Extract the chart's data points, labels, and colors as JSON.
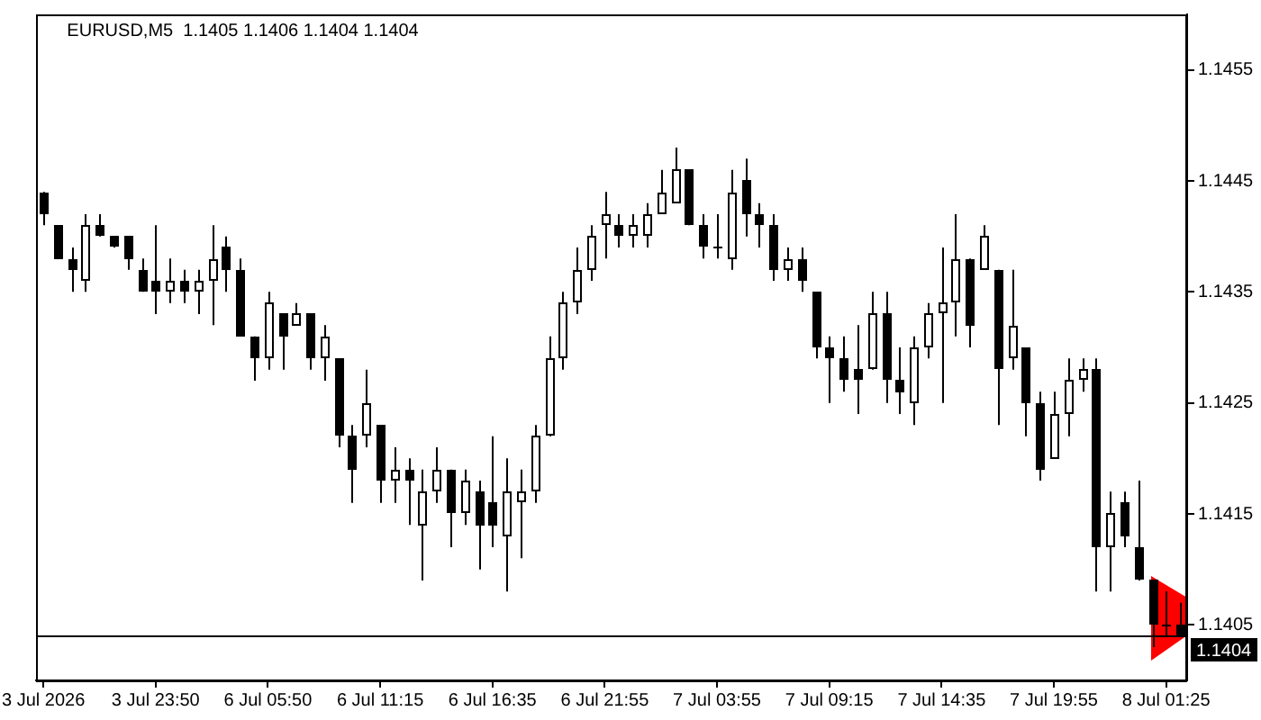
{
  "chart_data": {
    "type": "candlestick",
    "title": "EURUSD,M5  1.1405 1.1406 1.1404 1.1404",
    "categories": [
      "3 Jul 2026",
      null,
      null,
      null,
      null,
      null,
      null,
      null,
      "3 Jul 23:50",
      null,
      null,
      null,
      null,
      null,
      null,
      null,
      "6 Jul 05:50",
      null,
      null,
      null,
      null,
      null,
      null,
      null,
      "6 Jul 11:15",
      null,
      null,
      null,
      null,
      null,
      null,
      null,
      "6 Jul 16:35",
      null,
      null,
      null,
      null,
      null,
      null,
      null,
      "6 Jul 21:55",
      null,
      null,
      null,
      null,
      null,
      null,
      null,
      "7 Jul 03:55",
      null,
      null,
      null,
      null,
      null,
      null,
      null,
      "7 Jul 09:15",
      null,
      null,
      null,
      null,
      null,
      null,
      null,
      "7 Jul 14:35",
      null,
      null,
      null,
      null,
      null,
      null,
      null,
      "7 Jul 19:55",
      null,
      null,
      null,
      null,
      null,
      null,
      null,
      "8 Jul 01:25",
      null
    ],
    "ohlc": [
      [
        1.1444,
        1.1444,
        1.1441,
        1.1442
      ],
      [
        1.1441,
        1.1441,
        1.1438,
        1.1438
      ],
      [
        1.1438,
        1.1439,
        1.1435,
        1.1437
      ],
      [
        1.1436,
        1.1442,
        1.1435,
        1.1441
      ],
      [
        1.1441,
        1.1442,
        1.144,
        1.144
      ],
      [
        1.144,
        1.144,
        1.1439,
        1.1439
      ],
      [
        1.144,
        1.144,
        1.1437,
        1.1438
      ],
      [
        1.1437,
        1.1438,
        1.1435,
        1.1435
      ],
      [
        1.1436,
        1.1441,
        1.1433,
        1.1435
      ],
      [
        1.1435,
        1.1438,
        1.1434,
        1.1436
      ],
      [
        1.1436,
        1.1437,
        1.1434,
        1.1435
      ],
      [
        1.1435,
        1.1437,
        1.1433,
        1.1436
      ],
      [
        1.1436,
        1.1441,
        1.1432,
        1.1438
      ],
      [
        1.1439,
        1.144,
        1.1435,
        1.1437
      ],
      [
        1.1437,
        1.1438,
        1.1431,
        1.1431
      ],
      [
        1.1431,
        1.1431,
        1.1427,
        1.1429
      ],
      [
        1.1429,
        1.1435,
        1.1428,
        1.1434
      ],
      [
        1.1433,
        1.1433,
        1.1428,
        1.1431
      ],
      [
        1.1432,
        1.1434,
        1.1432,
        1.1433
      ],
      [
        1.1433,
        1.1433,
        1.1428,
        1.1429
      ],
      [
        1.1429,
        1.1432,
        1.1427,
        1.1431
      ],
      [
        1.1429,
        1.1429,
        1.1421,
        1.1422
      ],
      [
        1.1422,
        1.1423,
        1.1416,
        1.1419
      ],
      [
        1.1422,
        1.1428,
        1.1421,
        1.1425
      ],
      [
        1.1423,
        1.1423,
        1.1416,
        1.1418
      ],
      [
        1.1418,
        1.1421,
        1.1416,
        1.1419
      ],
      [
        1.1419,
        1.142,
        1.1414,
        1.1418
      ],
      [
        1.1414,
        1.1419,
        1.1409,
        1.1417
      ],
      [
        1.1417,
        1.1421,
        1.1416,
        1.1419
      ],
      [
        1.1419,
        1.1419,
        1.1412,
        1.1415
      ],
      [
        1.1415,
        1.1419,
        1.1414,
        1.1418
      ],
      [
        1.1417,
        1.1418,
        1.141,
        1.1414
      ],
      [
        1.1416,
        1.1422,
        1.1412,
        1.1414
      ],
      [
        1.1413,
        1.142,
        1.1408,
        1.1417
      ],
      [
        1.1416,
        1.1419,
        1.1411,
        1.1417
      ],
      [
        1.1417,
        1.1423,
        1.1416,
        1.1422
      ],
      [
        1.1422,
        1.1431,
        1.1422,
        1.1429
      ],
      [
        1.1429,
        1.1435,
        1.1428,
        1.1434
      ],
      [
        1.1434,
        1.1439,
        1.1433,
        1.1437
      ],
      [
        1.1437,
        1.1441,
        1.1436,
        1.144
      ],
      [
        1.1441,
        1.1444,
        1.1438,
        1.1442
      ],
      [
        1.1441,
        1.1442,
        1.1439,
        1.144
      ],
      [
        1.144,
        1.1442,
        1.1439,
        1.1441
      ],
      [
        1.144,
        1.1443,
        1.1439,
        1.1442
      ],
      [
        1.1442,
        1.1446,
        1.1442,
        1.1444
      ],
      [
        1.1443,
        1.1448,
        1.1443,
        1.1446
      ],
      [
        1.1446,
        1.1446,
        1.1441,
        1.1441
      ],
      [
        1.1441,
        1.1442,
        1.1438,
        1.1439
      ],
      [
        1.1439,
        1.1442,
        1.1438,
        1.1439
      ],
      [
        1.1438,
        1.1446,
        1.1437,
        1.1444
      ],
      [
        1.1445,
        1.1447,
        1.144,
        1.1442
      ],
      [
        1.1442,
        1.1443,
        1.1439,
        1.1441
      ],
      [
        1.1441,
        1.1442,
        1.1436,
        1.1437
      ],
      [
        1.1437,
        1.1439,
        1.1436,
        1.1438
      ],
      [
        1.1438,
        1.1439,
        1.1435,
        1.1436
      ],
      [
        1.1435,
        1.1435,
        1.1429,
        1.143
      ],
      [
        1.143,
        1.1431,
        1.1425,
        1.1429
      ],
      [
        1.1429,
        1.1431,
        1.1426,
        1.1427
      ],
      [
        1.1428,
        1.1432,
        1.1424,
        1.1427
      ],
      [
        1.1428,
        1.1435,
        1.1428,
        1.1433
      ],
      [
        1.1433,
        1.1435,
        1.1425,
        1.1427
      ],
      [
        1.1427,
        1.143,
        1.1424,
        1.1426
      ],
      [
        1.1425,
        1.1431,
        1.1423,
        1.143
      ],
      [
        1.143,
        1.1434,
        1.1429,
        1.1433
      ],
      [
        1.1433,
        1.1439,
        1.1425,
        1.1434
      ],
      [
        1.1434,
        1.1442,
        1.1431,
        1.1438
      ],
      [
        1.1438,
        1.1438,
        1.143,
        1.1432
      ],
      [
        1.1437,
        1.1441,
        1.1437,
        1.144
      ],
      [
        1.1437,
        1.1437,
        1.1423,
        1.1428
      ],
      [
        1.1429,
        1.1437,
        1.1428,
        1.1432
      ],
      [
        1.143,
        1.143,
        1.1422,
        1.1425
      ],
      [
        1.1425,
        1.1426,
        1.1418,
        1.1419
      ],
      [
        1.142,
        1.1426,
        1.142,
        1.1424
      ],
      [
        1.1424,
        1.1429,
        1.1422,
        1.1427
      ],
      [
        1.1427,
        1.1429,
        1.1426,
        1.1428
      ],
      [
        1.1428,
        1.1429,
        1.1408,
        1.1412
      ],
      [
        1.1412,
        1.1417,
        1.1408,
        1.1415
      ],
      [
        1.1416,
        1.1417,
        1.1412,
        1.1413
      ],
      [
        1.1412,
        1.1418,
        1.1409,
        1.1409
      ],
      [
        1.1409,
        1.1409,
        1.1403,
        1.1405
      ],
      [
        1.1405,
        1.1408,
        1.1404,
        1.1405
      ],
      [
        1.1405,
        1.1407,
        1.1404,
        1.1404
      ]
    ],
    "color": "#000000",
    "ylim": [
      1.14,
      1.146
    ],
    "yticks": [
      1.1405,
      1.1415,
      1.1425,
      1.1435,
      1.1445,
      1.1455
    ],
    "ref_lines": [
      {
        "axis": "y",
        "value": 1.1404,
        "label": "1.1404",
        "color": "#000000"
      }
    ]
  }
}
